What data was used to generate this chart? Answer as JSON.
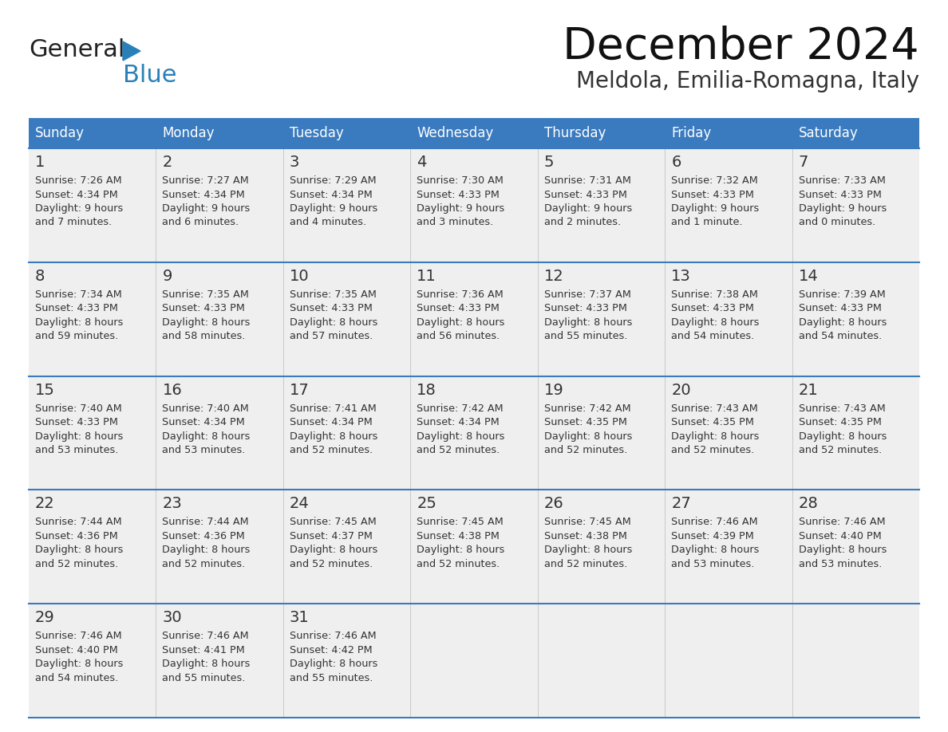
{
  "title": "December 2024",
  "subtitle": "Meldola, Emilia-Romagna, Italy",
  "header_color": "#3a7bbf",
  "header_text_color": "#ffffff",
  "cell_bg_color": "#efefef",
  "cell_text_color": "#333333",
  "grid_line_color": "#3a7bbf",
  "days_of_week": [
    "Sunday",
    "Monday",
    "Tuesday",
    "Wednesday",
    "Thursday",
    "Friday",
    "Saturday"
  ],
  "weeks": [
    [
      {
        "day": 1,
        "sunrise": "7:26 AM",
        "sunset": "4:34 PM",
        "daylight": "9 hours and 7 minutes"
      },
      {
        "day": 2,
        "sunrise": "7:27 AM",
        "sunset": "4:34 PM",
        "daylight": "9 hours and 6 minutes"
      },
      {
        "day": 3,
        "sunrise": "7:29 AM",
        "sunset": "4:34 PM",
        "daylight": "9 hours and 4 minutes"
      },
      {
        "day": 4,
        "sunrise": "7:30 AM",
        "sunset": "4:33 PM",
        "daylight": "9 hours and 3 minutes"
      },
      {
        "day": 5,
        "sunrise": "7:31 AM",
        "sunset": "4:33 PM",
        "daylight": "9 hours and 2 minutes"
      },
      {
        "day": 6,
        "sunrise": "7:32 AM",
        "sunset": "4:33 PM",
        "daylight": "9 hours and 1 minute"
      },
      {
        "day": 7,
        "sunrise": "7:33 AM",
        "sunset": "4:33 PM",
        "daylight": "9 hours and 0 minutes"
      }
    ],
    [
      {
        "day": 8,
        "sunrise": "7:34 AM",
        "sunset": "4:33 PM",
        "daylight": "8 hours and 59 minutes"
      },
      {
        "day": 9,
        "sunrise": "7:35 AM",
        "sunset": "4:33 PM",
        "daylight": "8 hours and 58 minutes"
      },
      {
        "day": 10,
        "sunrise": "7:35 AM",
        "sunset": "4:33 PM",
        "daylight": "8 hours and 57 minutes"
      },
      {
        "day": 11,
        "sunrise": "7:36 AM",
        "sunset": "4:33 PM",
        "daylight": "8 hours and 56 minutes"
      },
      {
        "day": 12,
        "sunrise": "7:37 AM",
        "sunset": "4:33 PM",
        "daylight": "8 hours and 55 minutes"
      },
      {
        "day": 13,
        "sunrise": "7:38 AM",
        "sunset": "4:33 PM",
        "daylight": "8 hours and 54 minutes"
      },
      {
        "day": 14,
        "sunrise": "7:39 AM",
        "sunset": "4:33 PM",
        "daylight": "8 hours and 54 minutes"
      }
    ],
    [
      {
        "day": 15,
        "sunrise": "7:40 AM",
        "sunset": "4:33 PM",
        "daylight": "8 hours and 53 minutes"
      },
      {
        "day": 16,
        "sunrise": "7:40 AM",
        "sunset": "4:34 PM",
        "daylight": "8 hours and 53 minutes"
      },
      {
        "day": 17,
        "sunrise": "7:41 AM",
        "sunset": "4:34 PM",
        "daylight": "8 hours and 52 minutes"
      },
      {
        "day": 18,
        "sunrise": "7:42 AM",
        "sunset": "4:34 PM",
        "daylight": "8 hours and 52 minutes"
      },
      {
        "day": 19,
        "sunrise": "7:42 AM",
        "sunset": "4:35 PM",
        "daylight": "8 hours and 52 minutes"
      },
      {
        "day": 20,
        "sunrise": "7:43 AM",
        "sunset": "4:35 PM",
        "daylight": "8 hours and 52 minutes"
      },
      {
        "day": 21,
        "sunrise": "7:43 AM",
        "sunset": "4:35 PM",
        "daylight": "8 hours and 52 minutes"
      }
    ],
    [
      {
        "day": 22,
        "sunrise": "7:44 AM",
        "sunset": "4:36 PM",
        "daylight": "8 hours and 52 minutes"
      },
      {
        "day": 23,
        "sunrise": "7:44 AM",
        "sunset": "4:36 PM",
        "daylight": "8 hours and 52 minutes"
      },
      {
        "day": 24,
        "sunrise": "7:45 AM",
        "sunset": "4:37 PM",
        "daylight": "8 hours and 52 minutes"
      },
      {
        "day": 25,
        "sunrise": "7:45 AM",
        "sunset": "4:38 PM",
        "daylight": "8 hours and 52 minutes"
      },
      {
        "day": 26,
        "sunrise": "7:45 AM",
        "sunset": "4:38 PM",
        "daylight": "8 hours and 52 minutes"
      },
      {
        "day": 27,
        "sunrise": "7:46 AM",
        "sunset": "4:39 PM",
        "daylight": "8 hours and 53 minutes"
      },
      {
        "day": 28,
        "sunrise": "7:46 AM",
        "sunset": "4:40 PM",
        "daylight": "8 hours and 53 minutes"
      }
    ],
    [
      {
        "day": 29,
        "sunrise": "7:46 AM",
        "sunset": "4:40 PM",
        "daylight": "8 hours and 54 minutes"
      },
      {
        "day": 30,
        "sunrise": "7:46 AM",
        "sunset": "4:41 PM",
        "daylight": "8 hours and 55 minutes"
      },
      {
        "day": 31,
        "sunrise": "7:46 AM",
        "sunset": "4:42 PM",
        "daylight": "8 hours and 55 minutes"
      },
      null,
      null,
      null,
      null
    ]
  ],
  "logo_color_general": "#222222",
  "logo_color_blue": "#2980b9",
  "logo_triangle_color": "#2980b9"
}
